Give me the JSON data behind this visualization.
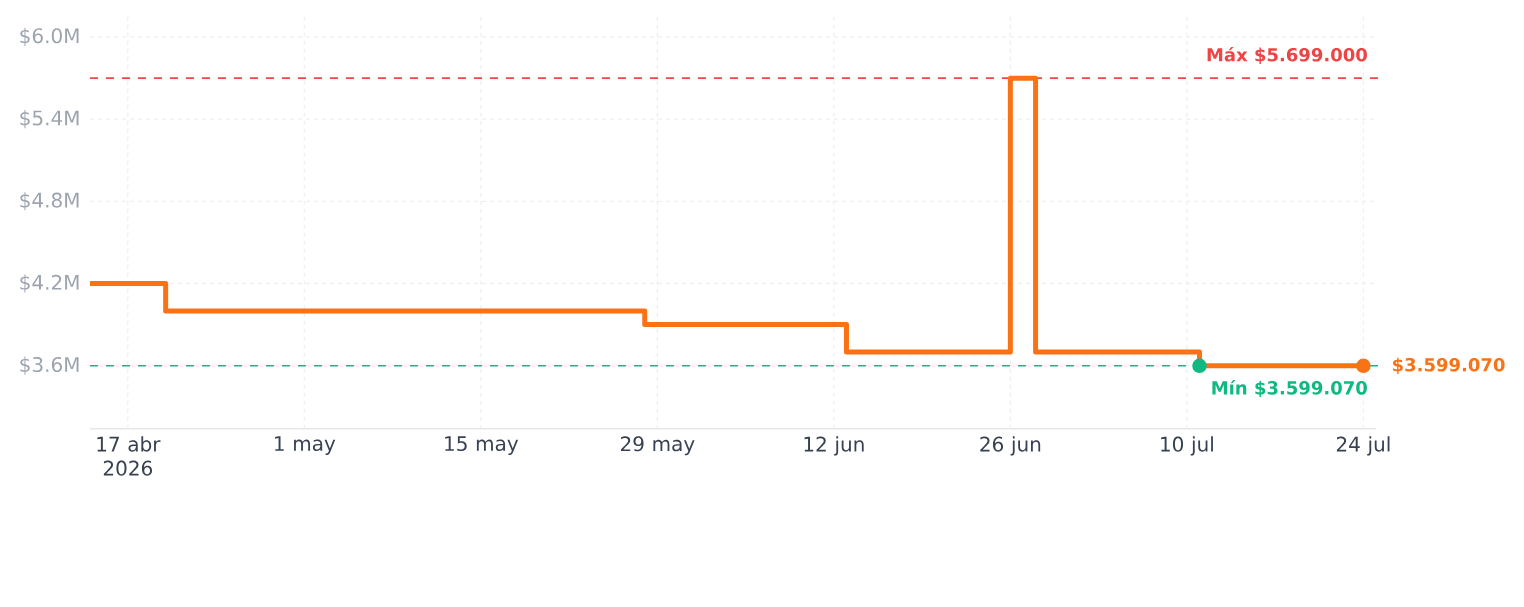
{
  "chart_data": {
    "type": "step",
    "x": [
      "2026-04-14",
      "2026-04-20",
      "2026-05-28",
      "2026-06-13",
      "2026-06-26",
      "2026-06-28",
      "2026-07-11",
      "2026-07-24"
    ],
    "series": [
      {
        "color": "#f97316",
        "values": [
          4.2,
          4.0,
          3.9,
          3.7,
          5.699,
          3.7,
          3.59907,
          3.59907
        ]
      },
      {
        "type": "scatter",
        "x": [
          "2026-07-11"
        ],
        "values": [
          3.59907
        ],
        "color": "#10b981",
        "marker": "circle"
      },
      {
        "type": "scatter",
        "x": [
          "2026-07-24"
        ],
        "values": [
          3.59907
        ],
        "color": "#f97316",
        "marker": "circle"
      }
    ],
    "xlim": [
      "2026-04-14",
      "2026-07-25"
    ],
    "xticks": [
      {
        "value": "2026-04-17",
        "label": "17 abr 2026"
      },
      {
        "value": "2026-05-01",
        "label": "1 may"
      },
      {
        "value": "2026-05-15",
        "label": "15 may"
      },
      {
        "value": "2026-05-29",
        "label": "29 may"
      },
      {
        "value": "2026-06-12",
        "label": "12 jun"
      },
      {
        "value": "2026-06-26",
        "label": "26 jun"
      },
      {
        "value": "2026-07-10",
        "label": "10 jul"
      },
      {
        "value": "2026-07-24",
        "label": "24 jul"
      }
    ],
    "ylim": [
      3.14,
      6.16
    ],
    "yticks": [
      {
        "value": 3.6,
        "label": "$3.6M"
      },
      {
        "value": 4.2,
        "label": "$4.2M"
      },
      {
        "value": 4.8,
        "label": "$4.8M"
      },
      {
        "value": 5.4,
        "label": "$5.4M"
      },
      {
        "value": 6.0,
        "label": "$6.0M"
      }
    ],
    "grid": true,
    "ref_lines": [
      {
        "axis": "y",
        "value": 5.699,
        "label": "Máx $5.699.000",
        "color": "#ef4444",
        "line_style": "dashed"
      },
      {
        "axis": "y",
        "value": 3.59907,
        "label": "Mín $3.599.070",
        "color": "#10b981",
        "line_style": "dashed"
      }
    ],
    "annotations": [
      {
        "text": "$3.599.070",
        "x": "2026-07-24",
        "y": 3.59907
      }
    ]
  }
}
